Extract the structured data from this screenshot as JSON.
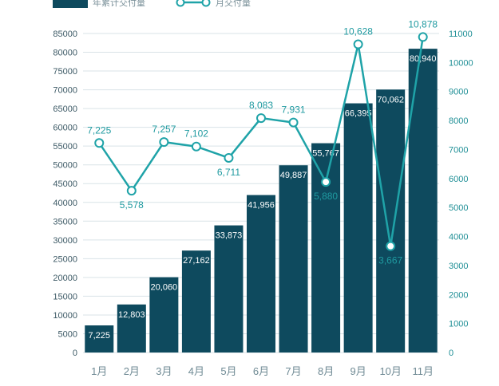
{
  "chart_data": {
    "type": "bar+line",
    "categories": [
      "1月",
      "2月",
      "3月",
      "4月",
      "5月",
      "6月",
      "7月",
      "8月",
      "9月",
      "10月",
      "11月"
    ],
    "series": [
      {
        "name": "年累计交付量",
        "type": "bar",
        "axis": "left",
        "color": "#0e4a5e",
        "values": [
          7225,
          12803,
          20060,
          27162,
          33873,
          41956,
          49887,
          55767,
          66395,
          70062,
          80940
        ],
        "labels": [
          "7,225",
          "12,803",
          "20,060",
          "27,162",
          "33,873",
          "41,956",
          "49,887",
          "55,767",
          "66,395",
          "70,062",
          "80,940"
        ]
      },
      {
        "name": "月交付量",
        "type": "line",
        "axis": "right",
        "color": "#1fa3a8",
        "values": [
          7225,
          5578,
          7257,
          7102,
          6711,
          8083,
          7931,
          5880,
          10628,
          3667,
          10878
        ],
        "labels": [
          "7,225",
          "5,578",
          "7,257",
          "7,102",
          "6,711",
          "8,083",
          "7,931",
          "5,880",
          "10,628",
          "3,667",
          "10,878"
        ]
      }
    ],
    "y_left": {
      "ylim": [
        0,
        85000
      ],
      "ticks": [
        "0",
        "5000",
        "10000",
        "15000",
        "20000",
        "25000",
        "30000",
        "35000",
        "40000",
        "45000",
        "50000",
        "55000",
        "60000",
        "65000",
        "70000",
        "75000",
        "80000",
        "85000"
      ]
    },
    "y_right": {
      "ylim": [
        0,
        11000
      ],
      "ticks": [
        "0",
        "1000",
        "2000",
        "3000",
        "4000",
        "5000",
        "6000",
        "7000",
        "8000",
        "9000",
        "10000",
        "11000"
      ]
    },
    "grid": true,
    "legend_position": "top-left"
  }
}
